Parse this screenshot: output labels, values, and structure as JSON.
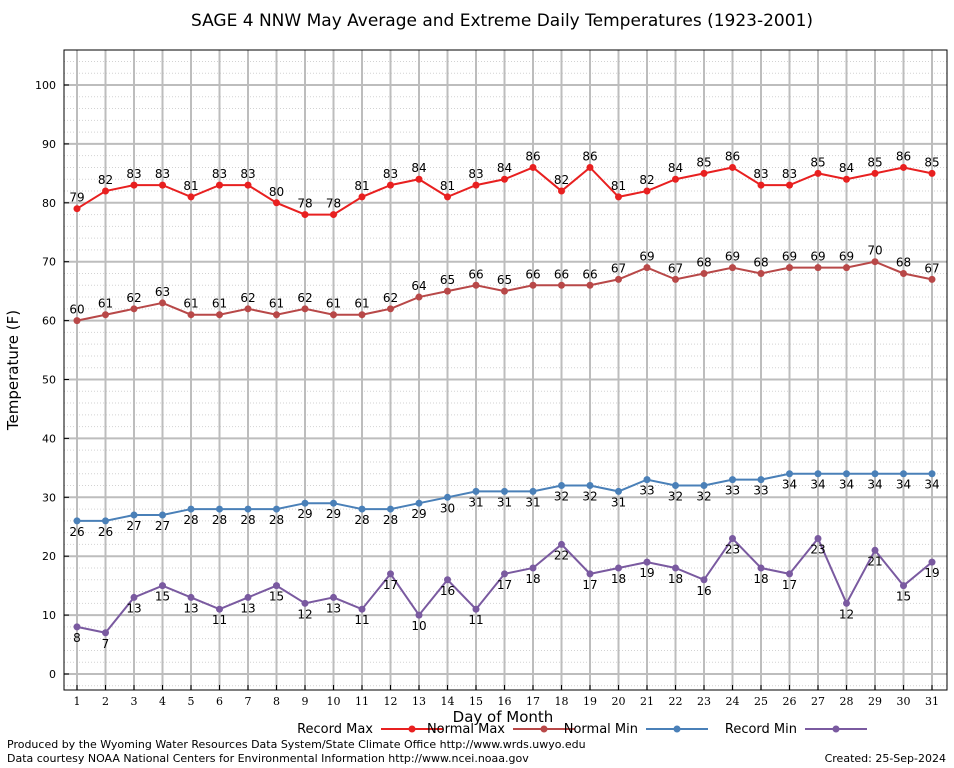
{
  "chart_data": {
    "type": "line",
    "title": "SAGE 4 NNW May Average and Extreme Daily Temperatures (1923-2001)",
    "xlabel": "Day of Month",
    "ylabel": "Temperature (F)",
    "xlim": [
      1,
      31
    ],
    "ylim": [
      0,
      100
    ],
    "yticks": [
      "0",
      "10",
      "20",
      "30",
      "40",
      "50",
      "60",
      "70",
      "80",
      "90",
      "100"
    ],
    "x": [
      1,
      2,
      3,
      4,
      5,
      6,
      7,
      8,
      9,
      10,
      11,
      12,
      13,
      14,
      15,
      16,
      17,
      18,
      19,
      20,
      21,
      22,
      23,
      24,
      25,
      26,
      27,
      28,
      29,
      30,
      31
    ],
    "grid": true,
    "legend_position": "bottom",
    "series": [
      {
        "name": "Record Max",
        "color": "#e82020",
        "label_side": "above",
        "values": [
          79,
          82,
          83,
          83,
          81,
          83,
          83,
          80,
          78,
          78,
          81,
          83,
          84,
          81,
          83,
          84,
          86,
          82,
          86,
          81,
          82,
          84,
          85,
          86,
          83,
          83,
          85,
          84,
          85,
          86,
          85
        ]
      },
      {
        "name": "Normal Max",
        "color": "#b84848",
        "label_side": "above",
        "values": [
          60,
          61,
          62,
          63,
          61,
          61,
          62,
          61,
          62,
          61,
          61,
          62,
          64,
          65,
          66,
          65,
          66,
          66,
          66,
          67,
          69,
          67,
          68,
          69,
          68,
          69,
          69,
          69,
          70,
          68,
          67
        ]
      },
      {
        "name": "Normal Min",
        "color": "#4a80b8",
        "label_side": "below",
        "values": [
          26,
          26,
          27,
          27,
          28,
          28,
          28,
          28,
          29,
          29,
          28,
          28,
          29,
          30,
          31,
          31,
          31,
          32,
          32,
          31,
          33,
          32,
          32,
          33,
          33,
          34,
          34,
          34,
          34,
          34,
          34
        ]
      },
      {
        "name": "Record Min",
        "color": "#7a5aa0",
        "label_side": "below",
        "values": [
          8,
          7,
          13,
          15,
          13,
          11,
          13,
          15,
          12,
          13,
          11,
          17,
          10,
          16,
          11,
          17,
          18,
          22,
          17,
          18,
          19,
          18,
          16,
          23,
          18,
          17,
          23,
          12,
          21,
          15,
          19
        ]
      }
    ]
  },
  "credits": {
    "produced_by": "Produced by the Wyoming Water Resources Data System/State Climate Office http://www.wrds.uwyo.edu",
    "data_courtesy": "Data courtesy NOAA National Centers for Environmental Information http://www.ncei.noaa.gov",
    "created": "Created:  25-Sep-2024"
  }
}
